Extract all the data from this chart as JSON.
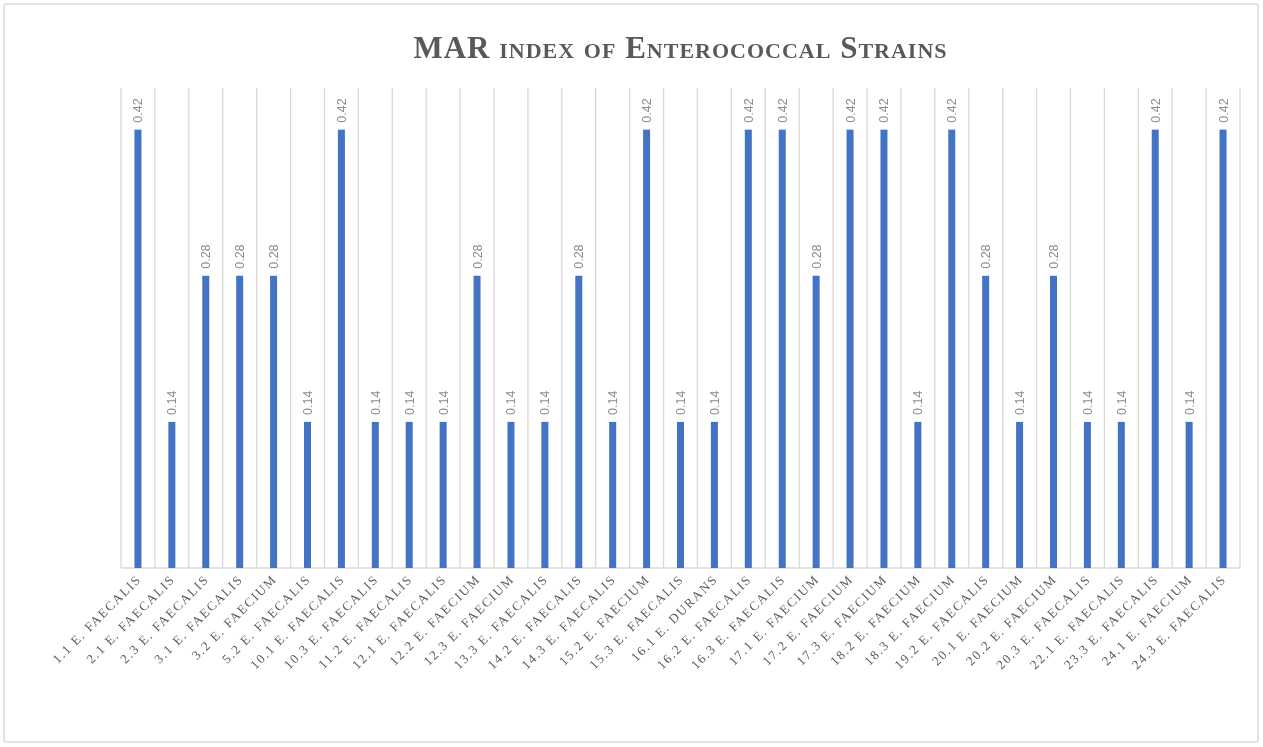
{
  "chart_data": {
    "type": "bar",
    "title": "MAR index of Enterococcal Strains",
    "categories": [
      "1.1 E. FAECALIS",
      "2.1 E. FAECALIS",
      "2.3 E. FAECALIS",
      "3.1 E. FAECALIS",
      "3.2 E. FAECIUM",
      "5.2 E. FAECALIS",
      "10.1 E. FAECALIS",
      "10.3 E. FAECALIS",
      "11.2 E. FAECALIS",
      "12.1 E. FAECALIS",
      "12.2 E. FAECIUM",
      "12.3 E. FAECIUM",
      "13.3 E. FAECALIS",
      "14.2 E. FAECALIS",
      "14.3 E. FAECALIS",
      "15.2 E. FAECIUM",
      "15.3 E. FAECALIS",
      "16.1 E. DURANS",
      "16.2 E. FAECALIS",
      "16.3 E. FAECALIS",
      "17.1 E. FAECIUM",
      "17.2 E. FAECIUM",
      "17.3 E. FAECIUM",
      "18.2 E. FAECIUM",
      "18.3 E. FAECIUM",
      "19.2 E. FAECALIS",
      "20.1 E. FAECIUM",
      "20.2 E. FAECIUM",
      "20.3 E. FAECALIS",
      "22.1 E. FAECALIS",
      "23.3 E. FAECALIS",
      "24.1 E. FAECIUM",
      "24.3 E. FAECALIS"
    ],
    "values": [
      0.42,
      0.14,
      0.28,
      0.28,
      0.28,
      0.14,
      0.42,
      0.14,
      0.14,
      0.14,
      0.28,
      0.14,
      0.14,
      0.28,
      0.14,
      0.42,
      0.14,
      0.14,
      0.42,
      0.42,
      0.28,
      0.42,
      0.42,
      0.14,
      0.42,
      0.28,
      0.14,
      0.28,
      0.14,
      0.14,
      0.42,
      0.14,
      0.42
    ],
    "color": "#4472c4",
    "grid": "x",
    "data_labels": true
  }
}
